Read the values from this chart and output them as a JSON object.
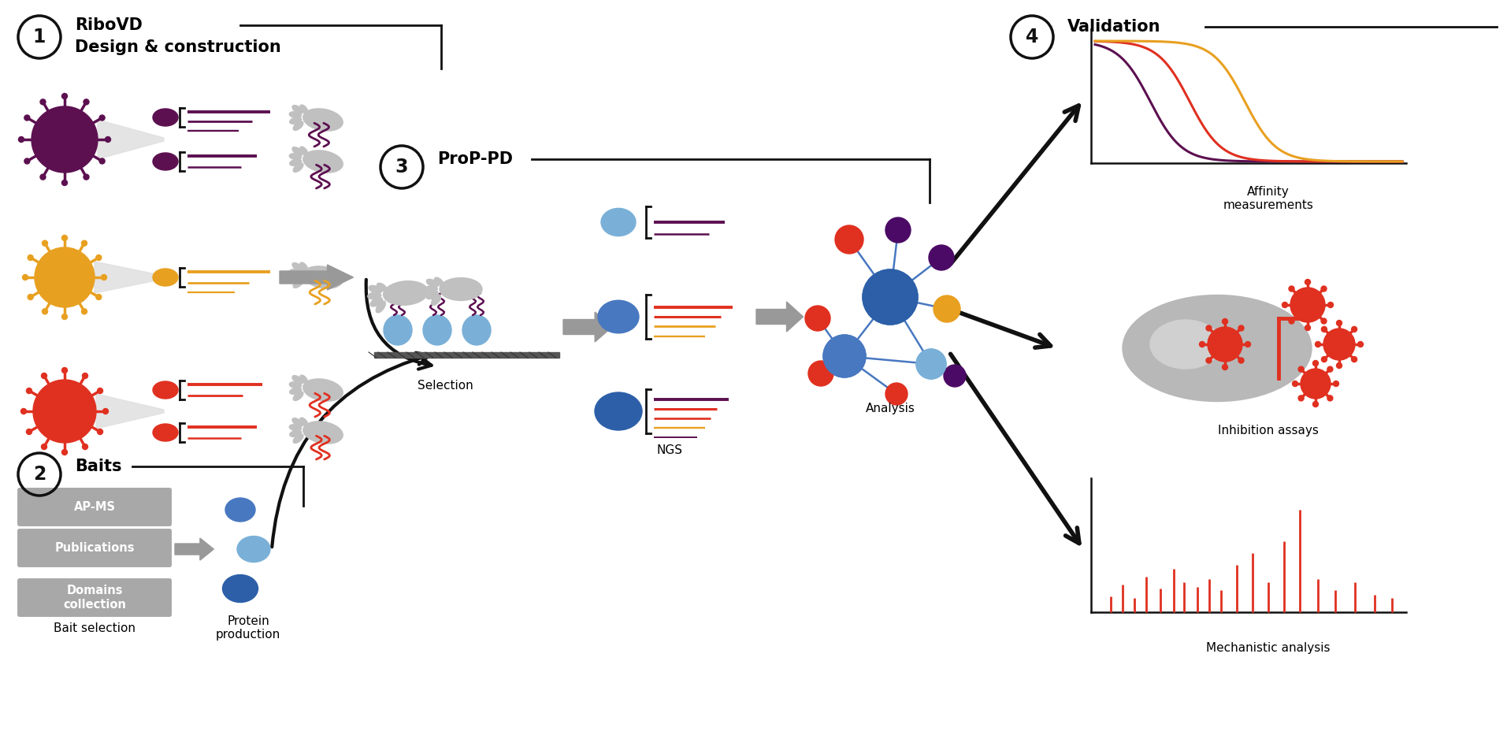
{
  "background_color": "#ffffff",
  "colors": {
    "purple": "#5c1050",
    "orange": "#e8a020",
    "red": "#e03020",
    "blue_dark": "#2c5fa8",
    "blue_med": "#4878c0",
    "blue_light": "#7ab0d8",
    "gray": "#aaaaaa",
    "gray_dark": "#888888",
    "black": "#111111",
    "gray_hand": "#c0c0c0"
  },
  "labels": {
    "ribovd_1": "RiboVD",
    "ribovd_2": "Design & construction",
    "baits": "Baits",
    "prop_pd": "ProP-PD",
    "validation": "Validation",
    "selection": "Selection",
    "bait_selection": "Bait selection",
    "protein_production": "Protein\nproduction",
    "ngs": "NGS",
    "analysis": "Analysis",
    "affinity": "Affinity\nmeasurements",
    "inhibition": "Inhibition assays",
    "mechanistic": "Mechanistic analysis",
    "ap_ms": "AP-MS",
    "publications": "Publications",
    "domains": "Domains\ncollection"
  }
}
